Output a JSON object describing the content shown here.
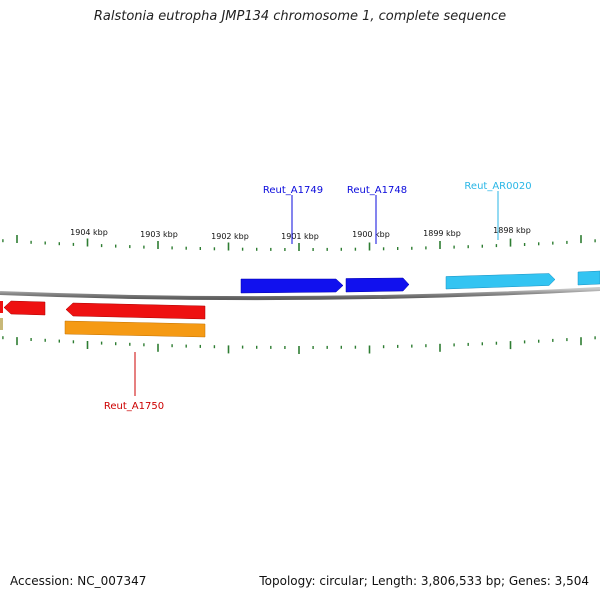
{
  "title": "Ralstonia eutropha JMP134 chromosome 1, complete sequence",
  "footer": {
    "accession": "Accession: NC_007347",
    "summary": "Topology: circular; Length: 3,806,533 bp; Genes: 3,504"
  },
  "scale_labels": [
    "1904 kbp",
    "1903 kbp",
    "1902 kbp",
    "1901 kbp",
    "1900 kbp",
    "1899 kbp",
    "1898 kbp"
  ],
  "genes": [
    {
      "name": "Reut_A1749",
      "color": "#0a0adc"
    },
    {
      "name": "Reut_A1748",
      "color": "#0a0adc"
    },
    {
      "name": "Reut_AR0020",
      "color": "#29b6e6"
    },
    {
      "name": "Reut_A1750",
      "color": "#cc0000"
    }
  ],
  "colors": {
    "backbone": "#888888",
    "ticks": "#2e7d32",
    "forward_gene": "#1111ee",
    "rna_gene": "#33c4f2",
    "reverse_gene": "#ee1111",
    "reverse_gene_alt": "#f59a14",
    "minor_feature": "#c8b878"
  }
}
